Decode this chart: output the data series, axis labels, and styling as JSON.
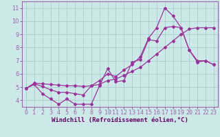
{
  "background_color": "#cce8e8",
  "grid_color": "#aacccc",
  "line_color": "#993399",
  "marker": "D",
  "marker_size": 2.0,
  "line_width": 0.9,
  "xlim": [
    -0.5,
    23.5
  ],
  "ylim": [
    3.5,
    11.5
  ],
  "xticks": [
    0,
    1,
    2,
    3,
    4,
    5,
    6,
    7,
    8,
    9,
    10,
    11,
    12,
    13,
    14,
    15,
    16,
    17,
    18,
    19,
    20,
    21,
    22,
    23
  ],
  "yticks": [
    4,
    5,
    6,
    7,
    8,
    9,
    10,
    11
  ],
  "xlabel": "Windchill (Refroidissement éolien,°C)",
  "xlabel_fontsize": 6.5,
  "tick_fontsize": 6.0,
  "series1_x": [
    0,
    1,
    2,
    3,
    4,
    5,
    6,
    7,
    8,
    9,
    10,
    11,
    12,
    13,
    14,
    15,
    16,
    17,
    18,
    19,
    20,
    21,
    22,
    23
  ],
  "series1_y": [
    4.9,
    5.2,
    4.5,
    4.1,
    3.7,
    4.1,
    3.7,
    3.7,
    3.7,
    5.1,
    6.4,
    5.4,
    5.5,
    6.9,
    7.1,
    8.6,
    8.5,
    9.5,
    9.6,
    9.5,
    7.8,
    6.9,
    7.0,
    6.7
  ],
  "series2_x": [
    0,
    1,
    2,
    3,
    4,
    5,
    6,
    7,
    8,
    9,
    10,
    11,
    12,
    13,
    14,
    15,
    16,
    17,
    18,
    19,
    20,
    21,
    22,
    23
  ],
  "series2_y": [
    4.9,
    5.3,
    5.25,
    5.2,
    5.15,
    5.1,
    5.1,
    5.05,
    5.1,
    5.2,
    5.5,
    5.6,
    5.9,
    6.2,
    6.5,
    7.0,
    7.5,
    8.0,
    8.5,
    9.0,
    9.4,
    9.5,
    9.5,
    9.5
  ],
  "series3_x": [
    0,
    1,
    2,
    3,
    4,
    5,
    6,
    7,
    8,
    9,
    10,
    11,
    12,
    13,
    14,
    15,
    16,
    17,
    18,
    19,
    20,
    21,
    22,
    23
  ],
  "series3_y": [
    4.9,
    5.25,
    5.05,
    4.8,
    4.6,
    4.6,
    4.5,
    4.4,
    5.1,
    5.5,
    6.0,
    5.8,
    6.3,
    6.7,
    7.3,
    8.7,
    9.5,
    11.0,
    10.4,
    9.5,
    7.8,
    7.0,
    7.0,
    6.7
  ],
  "spine_color": "#9966aa",
  "xlabel_color": "#660066"
}
